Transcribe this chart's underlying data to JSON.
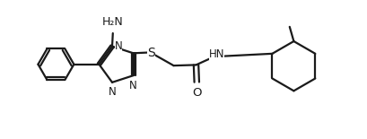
{
  "bg_color": "#ffffff",
  "line_color": "#1a1a1a",
  "line_width": 1.6,
  "font_size": 8.5,
  "figsize": [
    4.09,
    1.55
  ],
  "dpi": 100,
  "xlim": [
    0,
    10.5
  ],
  "ylim": [
    0,
    4.0
  ]
}
